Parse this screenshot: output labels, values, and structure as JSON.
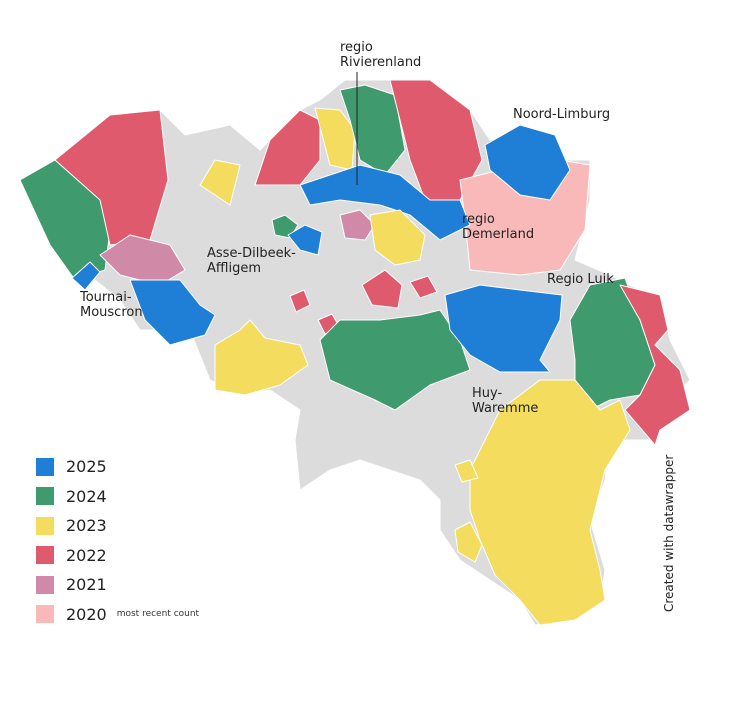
{
  "colors": {
    "2025": "#1f7fd6",
    "2024": "#3f9a6e",
    "2023": "#f3dc5e",
    "2022": "#e05a6e",
    "2021": "#d08aa8",
    "2020": "#f9b9b9",
    "no_data": "#dcdcdc"
  },
  "labels": {
    "rivierenland_1": "regio",
    "rivierenland_2": "Rivierenland",
    "noord_limburg": "Noord-Limburg",
    "demerland_1": "regio",
    "demerland_2": "Demerland",
    "asse_1": "Asse-Dilbeek-",
    "asse_2": "Affligem",
    "tournai_1": "Tournai-",
    "tournai_2": "Mouscron",
    "luik": "Regio Luik",
    "huy_1": "Huy-",
    "huy_2": "Waremme"
  },
  "legend": [
    {
      "label": "2025",
      "color": "#1f7fd6"
    },
    {
      "label": "2024",
      "color": "#3f9a6e"
    },
    {
      "label": "2023",
      "color": "#f3dc5e"
    },
    {
      "label": "2022",
      "color": "#e05a6e"
    },
    {
      "label": "2021",
      "color": "#d08aa8"
    },
    {
      "label": "2020",
      "color": "#f9b9b9",
      "note": "most recent count"
    }
  ],
  "credit": "Created with datawrapper"
}
